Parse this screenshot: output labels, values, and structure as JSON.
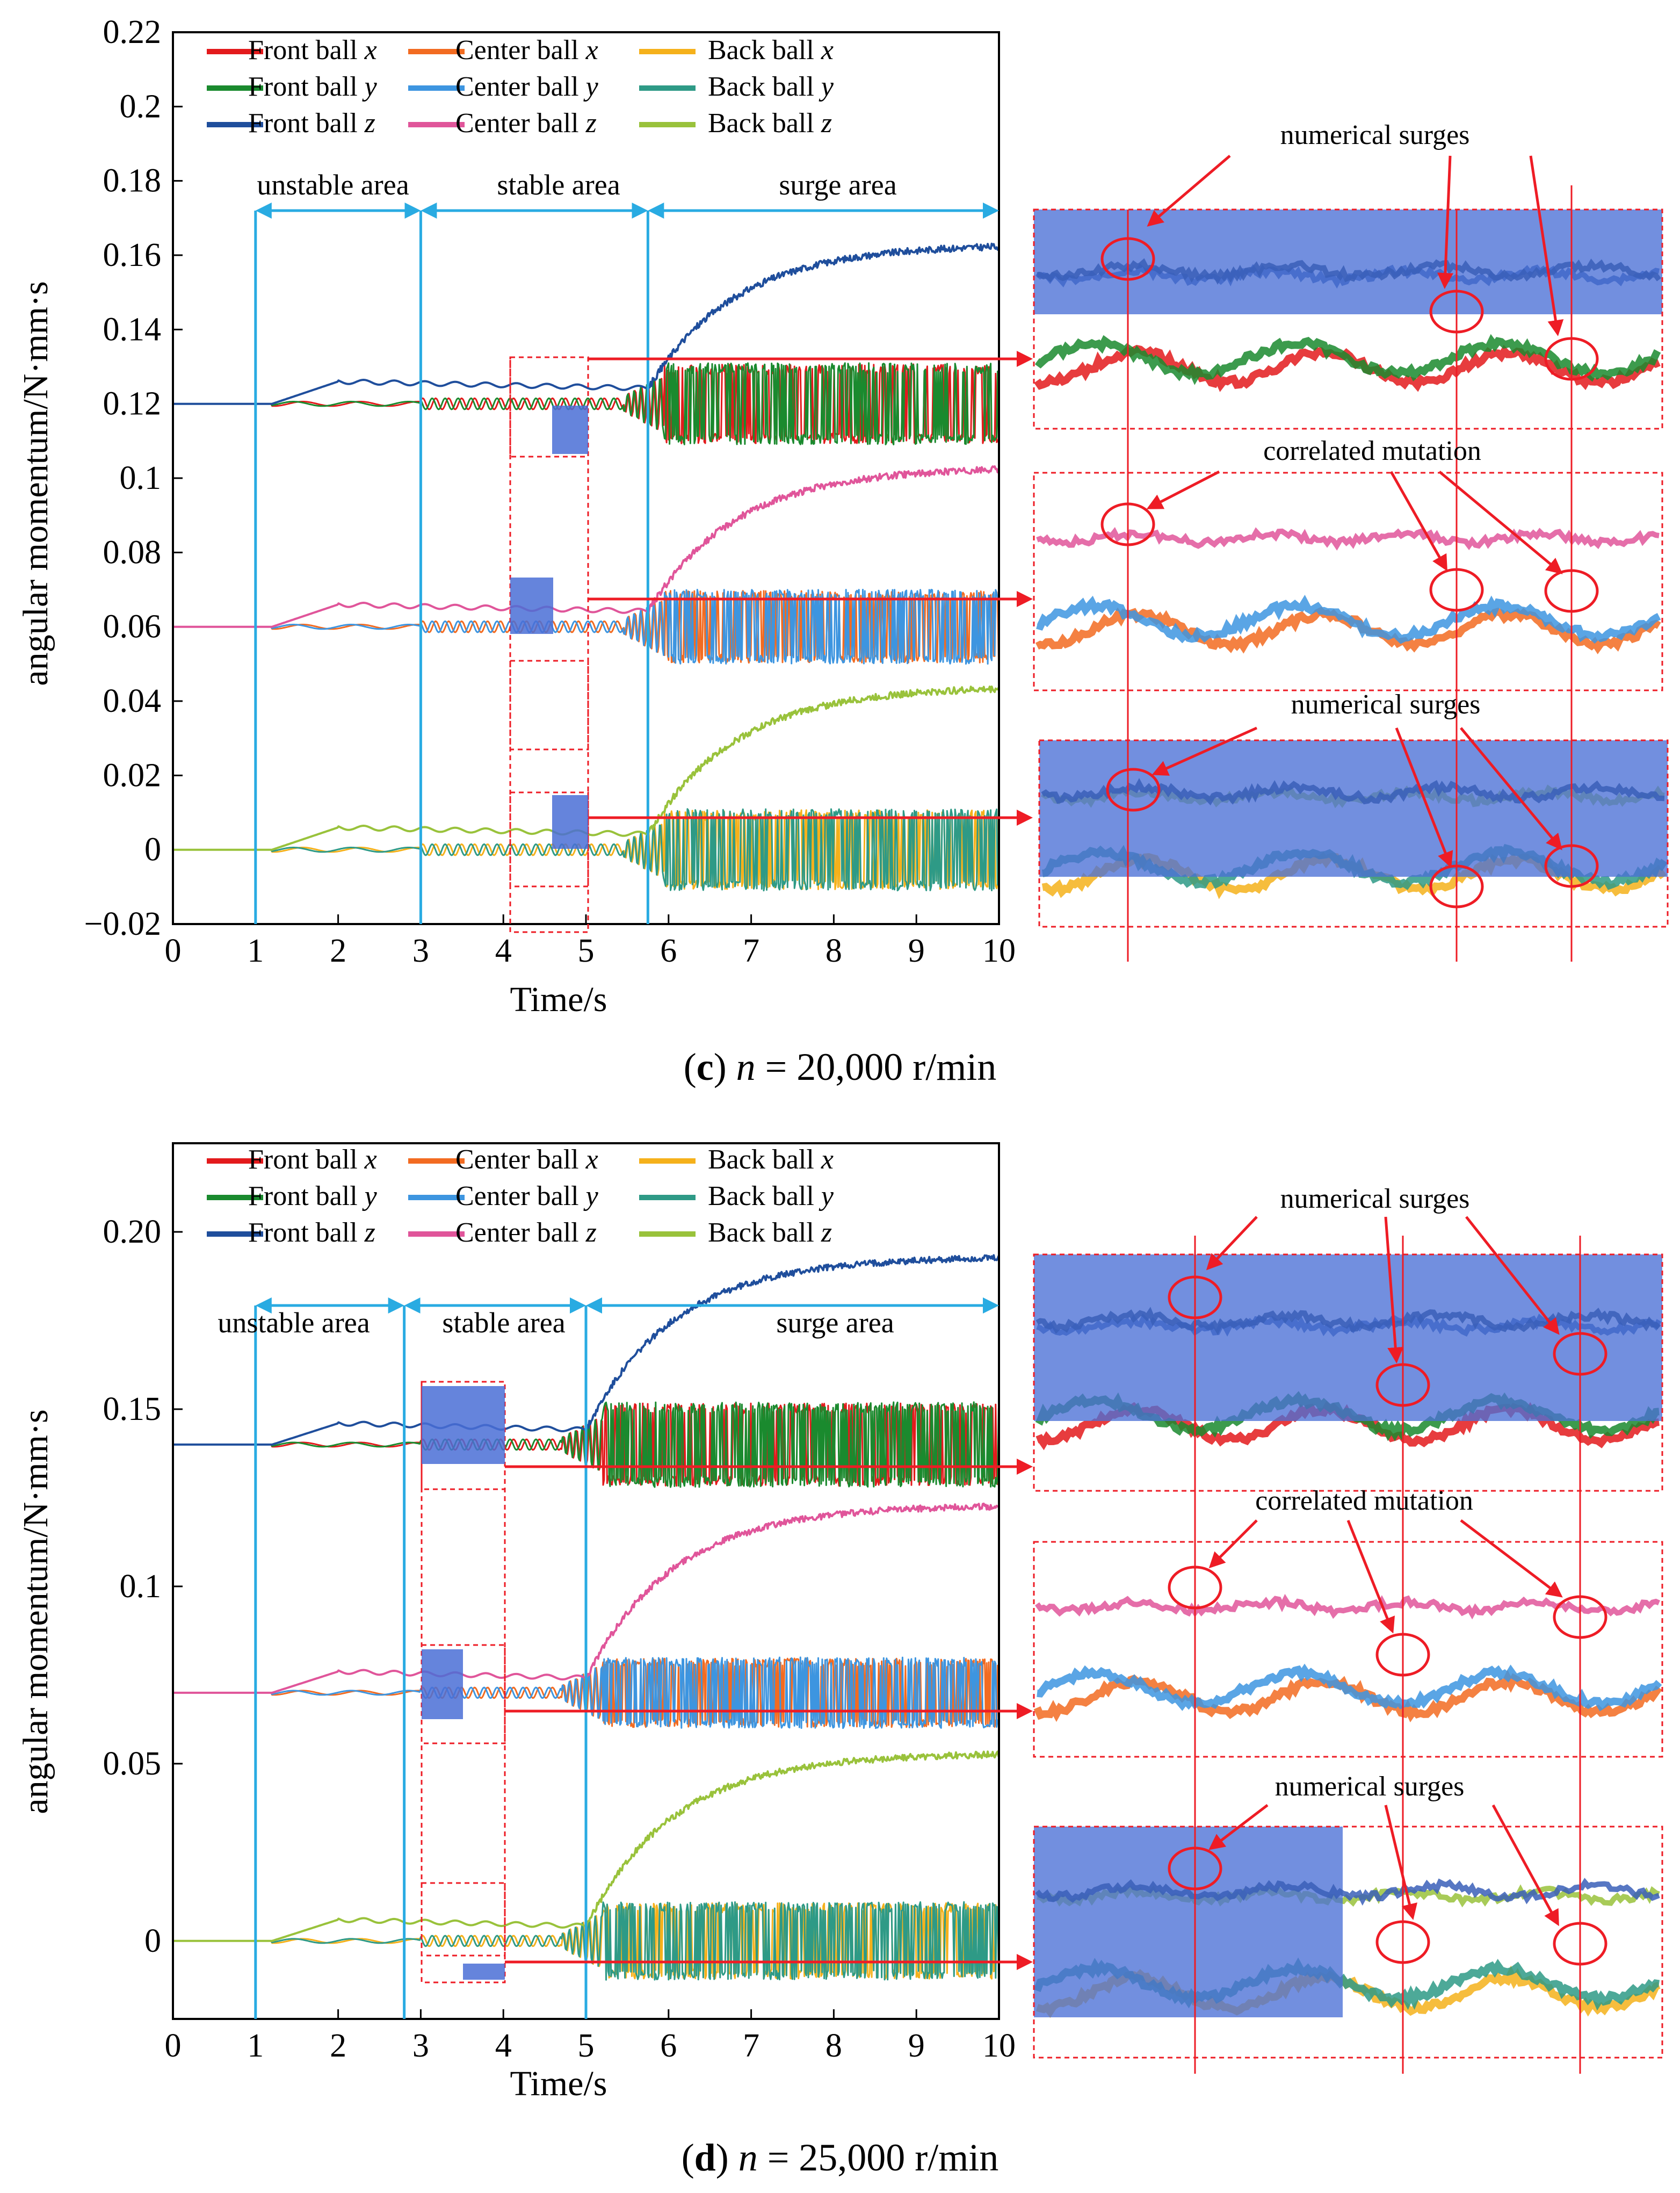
{
  "chart_data": [
    {
      "type": "line",
      "caption_letter": "c",
      "caption_rest": " = 20,000 r/min",
      "caption_var": "n",
      "xlabel": "Time/s",
      "ylabel": "angular momentum/N·mm·s",
      "xlim": [
        0,
        10
      ],
      "ylim": [
        -0.02,
        0.22
      ],
      "xticks": [
        "0",
        "1",
        "2",
        "3",
        "4",
        "5",
        "6",
        "7",
        "8",
        "9",
        "10"
      ],
      "yticks": [
        {
          "v": 0.22,
          "t": "0.22"
        },
        {
          "v": 0.2,
          "t": "0.2"
        },
        {
          "v": 0.18,
          "t": "0.18"
        },
        {
          "v": 0.16,
          "t": "0.16"
        },
        {
          "v": 0.14,
          "t": "0.14"
        },
        {
          "v": 0.12,
          "t": "0.12"
        },
        {
          "v": 0.1,
          "t": "0.1"
        },
        {
          "v": 0.08,
          "t": "0.08"
        },
        {
          "v": 0.06,
          "t": "0.06"
        },
        {
          "v": 0.04,
          "t": "0.04"
        },
        {
          "v": 0.02,
          "t": "0.02"
        },
        {
          "v": 0,
          "t": "0"
        },
        {
          "v": -0.02,
          "t": "−0.02"
        }
      ],
      "legend": [
        {
          "name": "Front ball",
          "axis": "x",
          "color": "#e31a1c"
        },
        {
          "name": "Front ball",
          "axis": "y",
          "color": "#1a8a2e"
        },
        {
          "name": "Front ball",
          "axis": "z",
          "color": "#1f4e9c"
        },
        {
          "name": "Center ball",
          "axis": "x",
          "color": "#f26b21"
        },
        {
          "name": "Center ball",
          "axis": "y",
          "color": "#3d95e0"
        },
        {
          "name": "Center ball",
          "axis": "z",
          "color": "#e0559a"
        },
        {
          "name": "Back ball",
          "axis": "x",
          "color": "#f5b11b"
        },
        {
          "name": "Back ball",
          "axis": "y",
          "color": "#2e9a86"
        },
        {
          "name": "Back ball",
          "axis": "z",
          "color": "#99c23b"
        }
      ],
      "regions": [
        {
          "label": "unstable area",
          "from": 1,
          "to": 3
        },
        {
          "label": "stable area",
          "from": 3,
          "to": 5.75
        },
        {
          "label": "surge area",
          "from": 5.75,
          "to": 10
        }
      ],
      "groups": [
        {
          "base": 0.12,
          "z_final": 0.163,
          "osc_amp": 0.011
        },
        {
          "base": 0.06,
          "z_final": 0.103,
          "osc_amp": 0.01
        },
        {
          "base": 0.0,
          "z_final": 0.044,
          "osc_amp": 0.011
        }
      ],
      "surge_start": 5.75,
      "annotations": [
        "numerical surges",
        "correlated mutation",
        "numerical surges"
      ]
    },
    {
      "type": "line",
      "caption_letter": "d",
      "caption_rest": " = 25,000 r/min",
      "caption_var": "n",
      "xlabel": "Time/s",
      "ylabel": "angular momentum/N·mm·s",
      "xlim": [
        0,
        10
      ],
      "ylim": [
        -0.022,
        0.225
      ],
      "xticks": [
        "0",
        "1",
        "2",
        "3",
        "4",
        "5",
        "6",
        "7",
        "8",
        "9",
        "10"
      ],
      "yticks": [
        {
          "v": 0.2,
          "t": "0.20"
        },
        {
          "v": 0.15,
          "t": "0.15"
        },
        {
          "v": 0.1,
          "t": "0.1"
        },
        {
          "v": 0.05,
          "t": "0.05"
        },
        {
          "v": 0,
          "t": "0"
        }
      ],
      "legend": [
        {
          "name": "Front ball",
          "axis": "x",
          "color": "#e31a1c"
        },
        {
          "name": "Front ball",
          "axis": "y",
          "color": "#1a8a2e"
        },
        {
          "name": "Front ball",
          "axis": "z",
          "color": "#1f4e9c"
        },
        {
          "name": "Center ball",
          "axis": "x",
          "color": "#f26b21"
        },
        {
          "name": "Center ball",
          "axis": "y",
          "color": "#3d95e0"
        },
        {
          "name": "Center ball",
          "axis": "z",
          "color": "#e0559a"
        },
        {
          "name": "Back ball",
          "axis": "x",
          "color": "#f5b11b"
        },
        {
          "name": "Back ball",
          "axis": "y",
          "color": "#2e9a86"
        },
        {
          "name": "Back ball",
          "axis": "z",
          "color": "#99c23b"
        }
      ],
      "regions": [
        {
          "label": "unstable area",
          "from": 1,
          "to": 2.8
        },
        {
          "label": "stable area",
          "from": 2.8,
          "to": 5
        },
        {
          "label": "surge area",
          "from": 5,
          "to": 10
        }
      ],
      "groups": [
        {
          "base": 0.14,
          "z_final": 0.193,
          "osc_amp": 0.012
        },
        {
          "base": 0.07,
          "z_final": 0.123,
          "osc_amp": 0.01
        },
        {
          "base": 0.0,
          "z_final": 0.053,
          "osc_amp": 0.011
        }
      ],
      "surge_start": 5,
      "annotations": [
        "numerical surges",
        "correlated mutation",
        "numerical surges"
      ]
    }
  ]
}
